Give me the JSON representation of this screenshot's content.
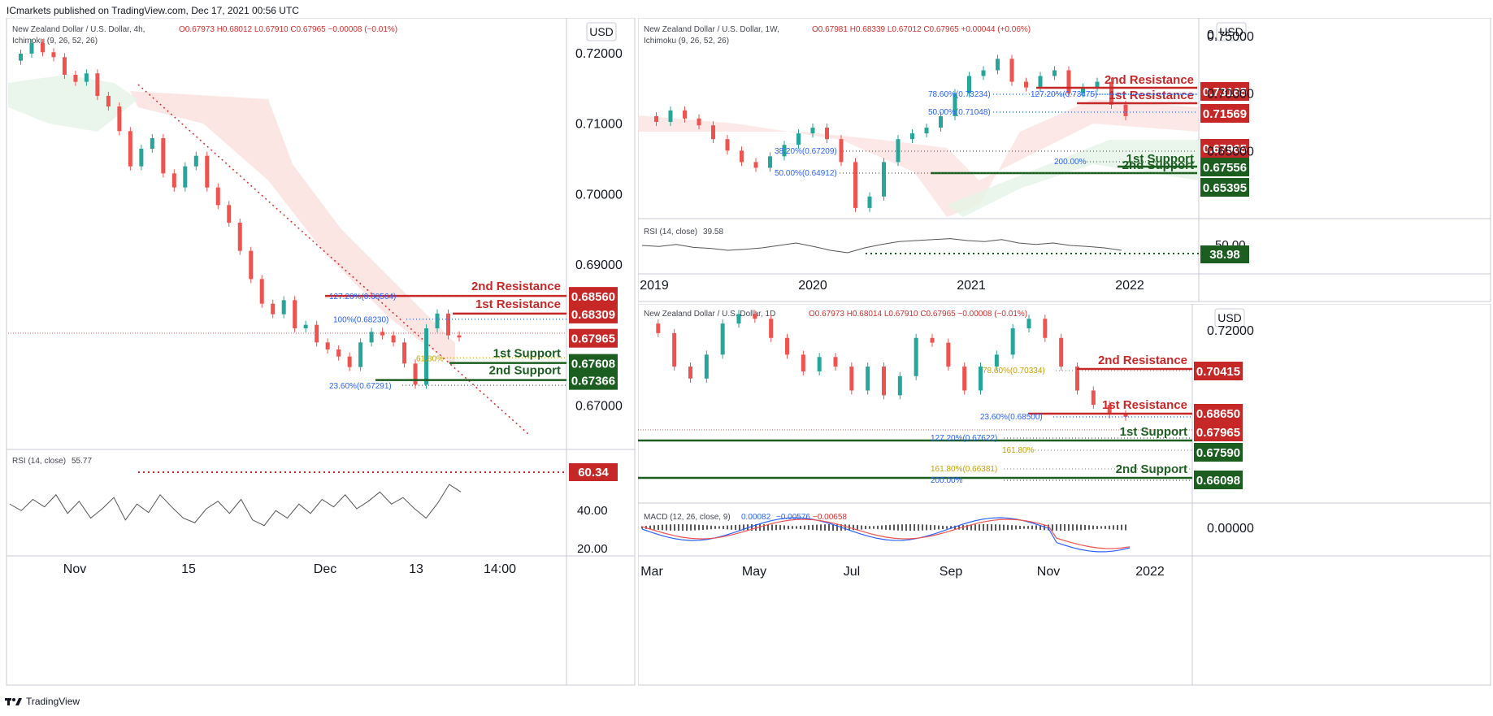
{
  "header": {
    "published": "ICmarkets published on TradingView.com, Dec 17, 2021 00:56 UTC"
  },
  "footer": {
    "brand": "TradingView"
  },
  "colors": {
    "resistance": "#c62828",
    "support": "#1b5e20",
    "up": "#26a69a",
    "down": "#ef5350",
    "fib": "#2962ff",
    "fib_gold": "#c8a000"
  },
  "chart_data": [
    {
      "type": "line",
      "id": "h4",
      "symbol": "New Zealand Dollar / U.S. Dollar, 4h,",
      "ohlc": "O0.67973  H0.68012  L0.67910  C0.67965  −0.00008 (−0.01%)",
      "indicator": "Ichimoku (9, 26, 52, 26)",
      "currency": "USD",
      "ylim": [
        0.6645,
        0.7245
      ],
      "y_ticks": [
        "0.72000",
        "0.71000",
        "0.70000",
        "0.69000",
        "0.67000"
      ],
      "x_ticks": [
        "Nov",
        "15",
        "Dec",
        "13",
        "14:00"
      ],
      "price": [
        0.719,
        0.72,
        0.7215,
        0.7202,
        0.7195,
        0.717,
        0.716,
        0.7172,
        0.714,
        0.7125,
        0.709,
        0.704,
        0.7065,
        0.708,
        0.703,
        0.701,
        0.704,
        0.7055,
        0.701,
        0.6985,
        0.696,
        0.692,
        0.688,
        0.6845,
        0.683,
        0.685,
        0.681,
        0.6815,
        0.679,
        0.678,
        0.677,
        0.6755,
        0.679,
        0.6805,
        0.68,
        0.679,
        0.676,
        0.673,
        0.681,
        0.6831,
        0.68,
        0.6797
      ],
      "levels": [
        {
          "label": "2nd Resistance",
          "value": "0.68560",
          "kind": "resistance",
          "y": 0.6856
        },
        {
          "label": "1st Resistance",
          "value": "0.68309",
          "kind": "resistance",
          "y": 0.68309
        },
        {
          "label": "1st Support",
          "value": "0.67608",
          "kind": "support",
          "y": 0.67608
        },
        {
          "label": "2nd Support",
          "value": "0.67366",
          "kind": "support",
          "y": 0.67366
        }
      ],
      "last_price": "0.67965",
      "fib_labels": [
        "127.20%(0.68564)",
        "100%(0.68230)",
        "61.80%",
        "23.60%(0.67291)"
      ],
      "rsi": {
        "label": "RSI (14, close)",
        "value": "55.77",
        "level": "60.34",
        "ticks": [
          "40.00",
          "20.00"
        ],
        "values": [
          45,
          38,
          50,
          42,
          55,
          35,
          48,
          30,
          40,
          52,
          28,
          45,
          36,
          55,
          42,
          30,
          25,
          40,
          48,
          35,
          50,
          28,
          22,
          38,
          30,
          45,
          35,
          50,
          42,
          55,
          40,
          48,
          58,
          45,
          52,
          40,
          30,
          46,
          66,
          58
        ]
      }
    },
    {
      "type": "line",
      "id": "weekly",
      "symbol": "New Zealand Dollar / U.S. Dollar, 1W,",
      "ohlc": "O0.67981  H0.68339  L0.67012  C0.67965  +0.00044 (+0.06%)",
      "indicator": "Ichimoku (9, 26, 52, 26)",
      "currency": "USD",
      "y_ticks": [
        "0.75000",
        "0.70000",
        "0.65000"
      ],
      "y_tick_partial": "0.",
      "x_ticks": [
        "2019",
        "2020",
        "2021",
        "2022"
      ],
      "price": [
        0.68,
        0.675,
        0.685,
        0.678,
        0.672,
        0.66,
        0.65,
        0.64,
        0.635,
        0.645,
        0.655,
        0.665,
        0.67,
        0.66,
        0.64,
        0.6,
        0.61,
        0.64,
        0.66,
        0.665,
        0.67,
        0.68,
        0.7,
        0.715,
        0.72,
        0.73,
        0.71,
        0.705,
        0.715,
        0.72,
        0.7,
        0.705,
        0.71,
        0.69,
        0.68
      ],
      "levels": [
        {
          "label": "2nd Resistance",
          "value": "0.73165",
          "kind": "resistance"
        },
        {
          "label": "1st Resistance",
          "value": "0.71569",
          "kind": "resistance"
        },
        {
          "label": "1st Support",
          "value": "0.67556",
          "kind": "support"
        },
        {
          "label": "2nd Support",
          "value": "0.65395",
          "kind": "support"
        }
      ],
      "last_price": "0.67965",
      "fib_labels": [
        "78.60%(0.73234)",
        "127.20%(0.73475)",
        "50.00%(0.71048)",
        "38.20%(0.67209)",
        "50.00%(0.64912)",
        "200.00%"
      ],
      "rsi": {
        "label": "RSI (14, close)",
        "value": "39.58",
        "level": "38.98",
        "tick": "50.00",
        "values": [
          50,
          48,
          52,
          46,
          44,
          40,
          42,
          45,
          50,
          55,
          48,
          40,
          35,
          45,
          52,
          58,
          60,
          62,
          64,
          60,
          58,
          62,
          55,
          52,
          55,
          50,
          48,
          45,
          40
        ]
      }
    },
    {
      "type": "line",
      "id": "daily",
      "symbol": "New Zealand Dollar / U.S. Dollar, 1D",
      "ohlc": "O0.67973  H0.68014  L0.67910  C0.67965  −0.00008 (−0.01%)",
      "currency": "USD",
      "y_ticks": [
        "0.72000",
        "0.00000"
      ],
      "x_ticks": [
        "Mar",
        "May",
        "Jul",
        "Sep",
        "Nov",
        "2022"
      ],
      "price": [
        0.718,
        0.714,
        0.7,
        0.695,
        0.705,
        0.718,
        0.722,
        0.72,
        0.712,
        0.705,
        0.698,
        0.704,
        0.7,
        0.69,
        0.7,
        0.688,
        0.696,
        0.712,
        0.71,
        0.7,
        0.69,
        0.7,
        0.705,
        0.716,
        0.72,
        0.712,
        0.7,
        0.69,
        0.684,
        0.68,
        0.679
      ],
      "levels": [
        {
          "label": "2nd Resistance",
          "value": "0.70415",
          "kind": "resistance"
        },
        {
          "label": "1st Resistance",
          "value": "0.68650",
          "kind": "resistance"
        },
        {
          "label": "1st Support",
          "value": "0.67590",
          "kind": "support"
        },
        {
          "label": "2nd Support",
          "value": "0.66098",
          "kind": "support"
        }
      ],
      "last_price": "0.67965",
      "fib_labels": [
        "78.60%(0.70334)",
        "23.60%(0.68500)",
        "127.20%(0.67622)",
        "161.80%",
        "161.80%(0.66381)",
        "200.00%"
      ],
      "macd": {
        "label": "MACD (12, 26, close, 9)",
        "v1": "0.00082",
        "v2": "−0.00576",
        "v3": "−0.00658"
      }
    }
  ]
}
